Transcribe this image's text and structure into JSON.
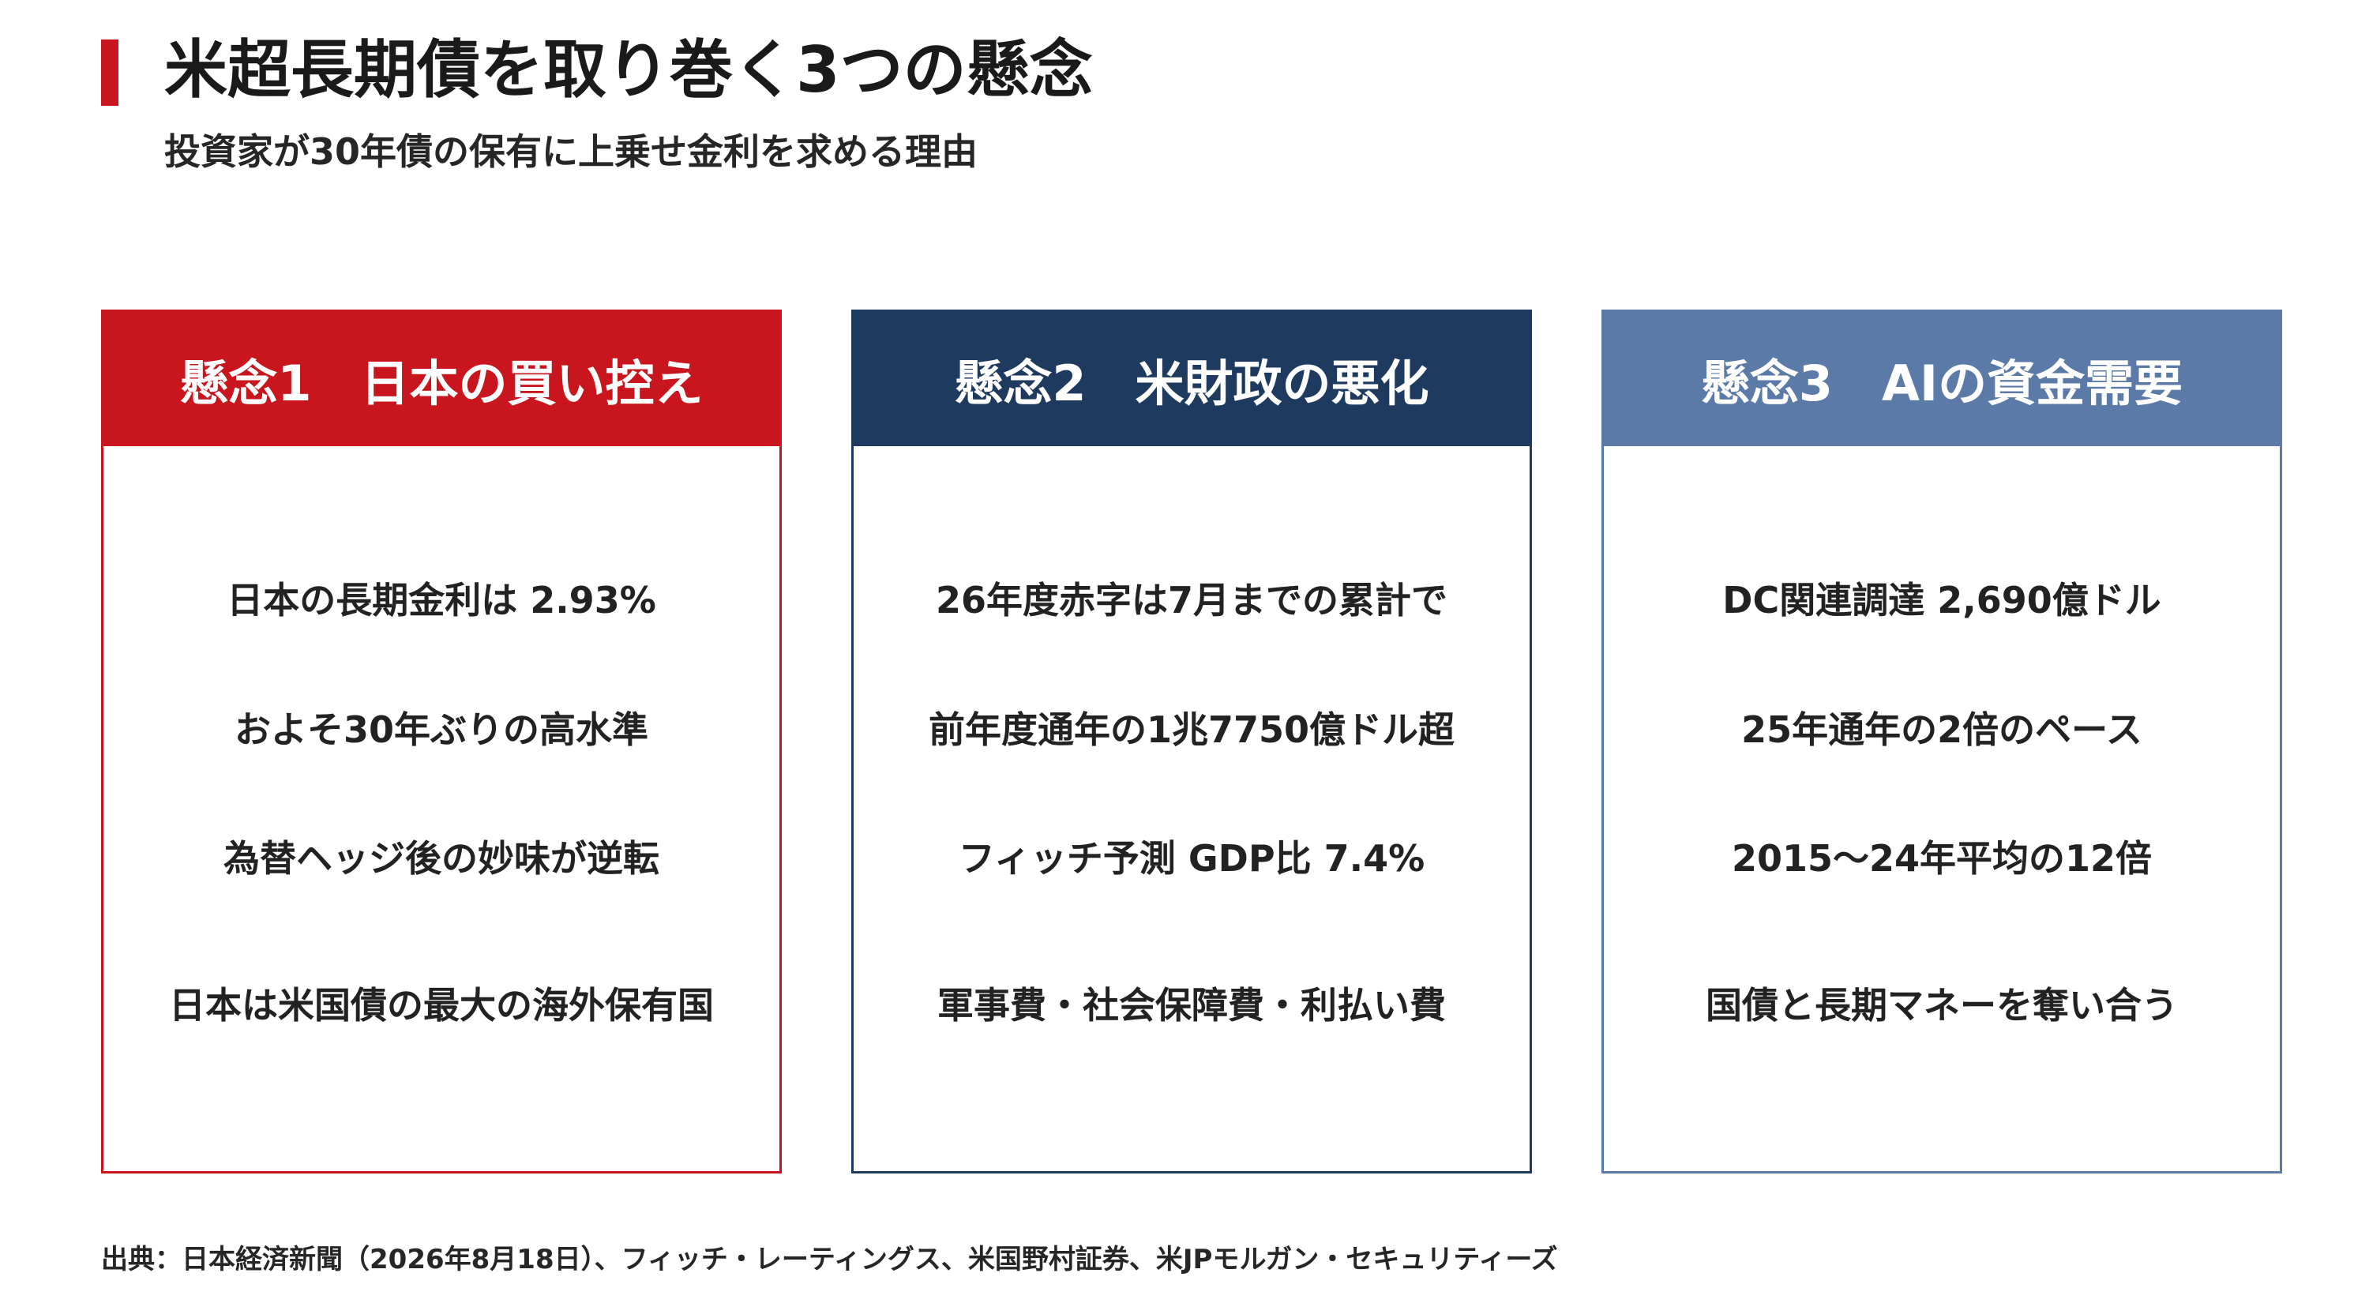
{
  "title": "米超長期債を取り巻く3つの懸念",
  "subtitle": "投資家が30年債の保有に上乗せ金利を求める理由",
  "accent_color": "#c9151e",
  "cards": [
    {
      "header": "懸念1　日本の買い控え",
      "color": "#c9151e",
      "lines": [
        "日本の長期金利は 2.93%",
        "およそ30年ぶりの高水準",
        "為替ヘッジ後の妙味が逆転",
        "日本は米国債の最大の海外保有国"
      ]
    },
    {
      "header": "懸念2　米財政の悪化",
      "color": "#1f3a5f",
      "lines": [
        "26年度赤字は7月までの累計で",
        "前年度通年の1兆7750億ドル超",
        "フィッチ予測 GDP比 7.4%",
        "軍事費・社会保障費・利払い費"
      ]
    },
    {
      "header": "懸念3　AIの資金需要",
      "color": "#5b7aa8",
      "lines": [
        "DC関連調達 2,690億ドル",
        "25年通年の2倍のペース",
        "2015〜24年平均の12倍",
        "国債と長期マネーを奪い合う"
      ]
    }
  ],
  "source": "出典：日本経済新聞（2026年8月18日）、フィッチ・レーティングス、米国野村証券、米JPモルガン・セキュリティーズ"
}
